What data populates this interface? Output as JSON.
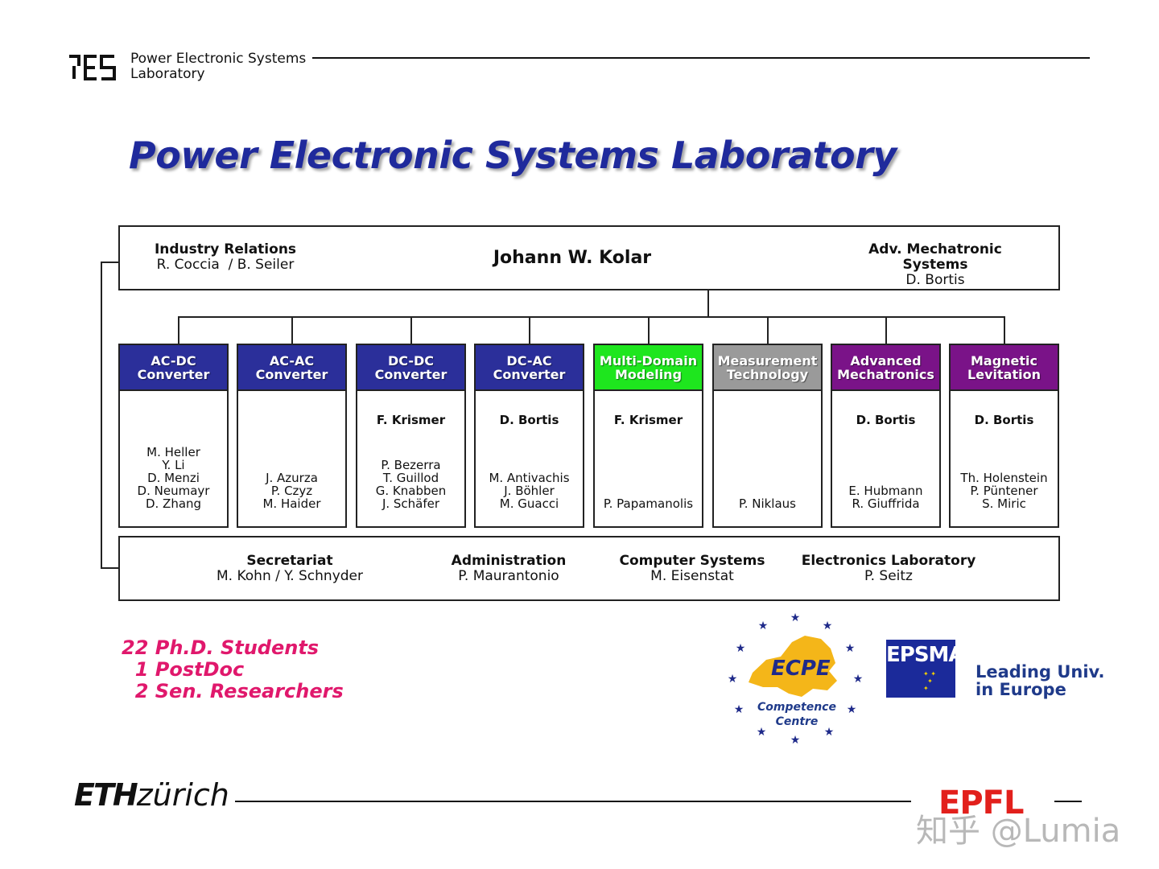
{
  "header": {
    "lab_line1": "Power Electronic Systems",
    "lab_line2": "Laboratory",
    "logo_icon": "pes-logo-icon"
  },
  "title": "Power Electronic Systems Laboratory",
  "head": {
    "left_title": "Industry Relations",
    "left_names": "R. Coccia  / B. Seiler",
    "center_name": "Johann W. Kolar",
    "right_title": "Adv. Mechatronic Systems",
    "right_names": "D. Bortis"
  },
  "groups": [
    {
      "line1": "AC-DC",
      "line2": "Converter",
      "color": "#2b2f9a",
      "lead": "",
      "members": [
        "M. Heller",
        "Y. Li",
        "D. Menzi",
        "D. Neumayr",
        "D. Zhang"
      ]
    },
    {
      "line1": "AC-AC",
      "line2": "Converter",
      "color": "#2b2f9a",
      "lead": "",
      "members": [
        "J. Azurza",
        "P. Czyz",
        "M. Haider"
      ]
    },
    {
      "line1": "DC-DC",
      "line2": "Converter",
      "color": "#2b2f9a",
      "lead": "F. Krismer",
      "members": [
        "P. Bezerra",
        "T. Guillod",
        "G. Knabben",
        "J. Schäfer"
      ]
    },
    {
      "line1": "DC-AC",
      "line2": "Converter",
      "color": "#2b2f9a",
      "lead": "D. Bortis",
      "members": [
        "M. Antivachis",
        "J. Böhler",
        "M. Guacci"
      ]
    },
    {
      "line1": "Multi-Domain",
      "line2": "Modeling",
      "color": "#1ee61e",
      "lead": "F. Krismer",
      "members": [
        "P. Papamanolis"
      ]
    },
    {
      "line1": "Measurement",
      "line2": "Technology",
      "color": "#9a9a9a",
      "lead": "",
      "members": [
        "P. Niklaus"
      ]
    },
    {
      "line1": "Advanced",
      "line2": "Mechatronics",
      "color": "#7a1388",
      "lead": "D. Bortis",
      "members": [
        "E. Hubmann",
        "R. Giuffrida"
      ]
    },
    {
      "line1": "Magnetic",
      "line2": "Levitation",
      "color": "#7a1388",
      "lead": "D. Bortis",
      "members": [
        "Th. Holenstein",
        "P. Püntener",
        "S. Miric"
      ]
    }
  ],
  "support": [
    {
      "title": "Secretariat",
      "names": "M. Kohn / Y. Schnyder"
    },
    {
      "title": "Administration",
      "names": "P. Maurantonio"
    },
    {
      "title": "Computer Systems",
      "names": "M. Eisenstat"
    },
    {
      "title": "Electronics Laboratory",
      "names": "P. Seitz"
    }
  ],
  "students": [
    "22 Ph.D. Students",
    "  1 PostDoc",
    "  2 Sen. Researchers"
  ],
  "logos": {
    "ecpe_name": "ECPE",
    "ecpe_line1": "Competence",
    "ecpe_line2": "Centre",
    "epsma_name": "EPSMA",
    "leading_line1": "Leading Univ.",
    "leading_line2": "in Europe",
    "eth_bold": "ETH",
    "eth_rest": "zürich",
    "epfl": "EPFL",
    "watermark": "知乎 @Lumia"
  }
}
